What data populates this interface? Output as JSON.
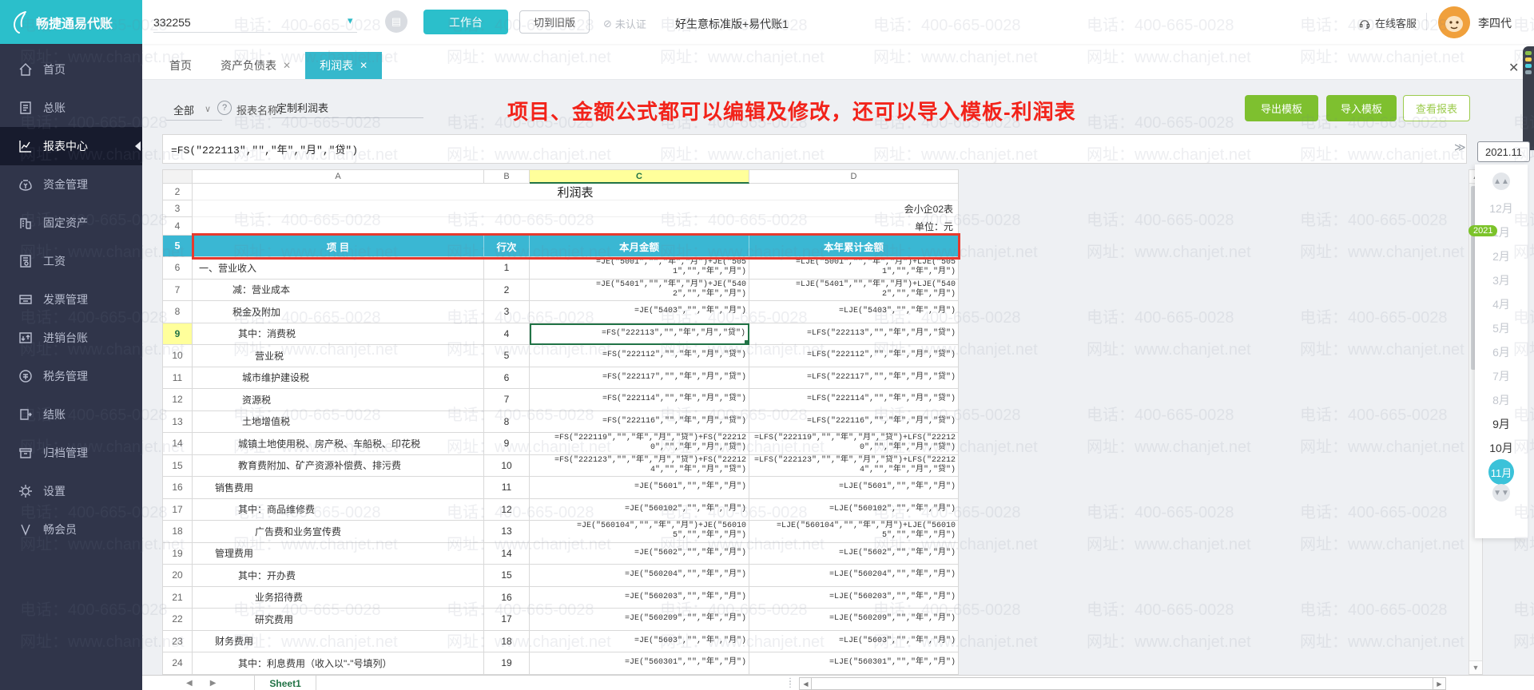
{
  "topbar": {
    "brand": "畅捷通易代账",
    "account_number": "332255",
    "workbench_button": "工作台",
    "switch_old_button": "切到旧版",
    "cert_status": "未认证",
    "edition": "好生意标准版+易代账1",
    "online_service": "在线客服",
    "username": "李四代"
  },
  "sidebar": {
    "items": [
      {
        "label": "首页",
        "icon": "home-icon",
        "active": false
      },
      {
        "label": "总账",
        "icon": "ledger-icon",
        "active": false
      },
      {
        "label": "报表中心",
        "icon": "report-center-icon",
        "active": true
      },
      {
        "label": "资金管理",
        "icon": "funds-icon",
        "active": false
      },
      {
        "label": "固定资产",
        "icon": "fixed-assets-icon",
        "active": false
      },
      {
        "label": "工资",
        "icon": "payroll-icon",
        "active": false
      },
      {
        "label": "发票管理",
        "icon": "invoice-icon",
        "active": false
      },
      {
        "label": "进销台账",
        "icon": "purchase-sales-icon",
        "active": false
      },
      {
        "label": "税务管理",
        "icon": "tax-icon",
        "active": false
      },
      {
        "label": "结账",
        "icon": "closing-icon",
        "active": false
      },
      {
        "label": "归档管理",
        "icon": "archive-icon",
        "active": false
      },
      {
        "label": "设置",
        "icon": "settings-icon",
        "active": false
      },
      {
        "label": "畅会员",
        "icon": "member-icon",
        "active": false
      }
    ]
  },
  "tabs": [
    {
      "label": "首页",
      "closable": false,
      "active": false
    },
    {
      "label": "资产负债表",
      "closable": true,
      "active": false
    },
    {
      "label": "利润表",
      "closable": true,
      "active": true
    }
  ],
  "toolbar": {
    "filter_all": "全部",
    "help_glyph": "?",
    "report_name_label": "报表名称：",
    "report_name_value": "定制利润表",
    "annotation": "项目、金额公式都可以编辑及修改，还可以导入模板-利润表",
    "export_template": "导出模板",
    "import_template": "导入模板",
    "view_report": "查看报表"
  },
  "formula_bar": {
    "value": "=FS(\"222113\",\"\",\"年\",\"月\",\"贷\")"
  },
  "period": {
    "current": "2021.11",
    "year_badge": "2021",
    "months": [
      {
        "label": "12月",
        "state": "muted"
      },
      {
        "label": "1月",
        "state": "muted"
      },
      {
        "label": "2月",
        "state": "muted"
      },
      {
        "label": "3月",
        "state": "muted"
      },
      {
        "label": "4月",
        "state": "muted"
      },
      {
        "label": "5月",
        "state": "muted"
      },
      {
        "label": "6月",
        "state": "muted"
      },
      {
        "label": "7月",
        "state": "muted"
      },
      {
        "label": "8月",
        "state": "muted"
      },
      {
        "label": "9月",
        "state": "normal"
      },
      {
        "label": "10月",
        "state": "normal"
      },
      {
        "label": "11月",
        "state": "selected"
      }
    ]
  },
  "spreadsheet": {
    "columns": [
      "A",
      "B",
      "C",
      "D"
    ],
    "highlighted_column": "C",
    "title_row": {
      "num": "2",
      "title": "利润表"
    },
    "meta_rows": [
      {
        "num": "3",
        "text": "会小企02表"
      },
      {
        "num": "4",
        "text": "单位：元"
      }
    ],
    "header_row": {
      "num": "5",
      "cells": [
        "项 目",
        "行次",
        "本月金额",
        "本年累计金额"
      ]
    },
    "selected_cell": {
      "row": 9,
      "column": "C"
    },
    "rows": [
      {
        "n": "6",
        "indent": 8,
        "item": "一、营业收入",
        "line": "1",
        "month": "=JE(\"5001\",\"\",\"年\",\"月\")+JE(\"5051\",\"\",\"年\",\"月\")",
        "year": "=LJE(\"5001\",\"\",\"年\",\"月\")+LJE(\"5051\",\"\",\"年\",\"月\")",
        "wrap": true
      },
      {
        "n": "7",
        "indent": 50,
        "item": "减：营业成本",
        "line": "2",
        "month": "=JE(\"5401\",\"\",\"年\",\"月\")+JE(\"5402\",\"\",\"年\",\"月\")",
        "year": "=LJE(\"5401\",\"\",\"年\",\"月\")+LJE(\"5402\",\"\",\"年\",\"月\")",
        "wrap": true
      },
      {
        "n": "8",
        "indent": 50,
        "item": "税金及附加",
        "line": "3",
        "month": "=JE(\"5403\",\"\",\"年\",\"月\")",
        "year": "=LJE(\"5403\",\"\",\"年\",\"月\")",
        "wrap": false
      },
      {
        "n": "9",
        "indent": 57,
        "item": "其中：消费税",
        "line": "4",
        "month": "=FS(\"222113\",\"\",\"年\",\"月\",\"贷\")",
        "year": "=LFS(\"222113\",\"\",\"年\",\"月\",\"贷\")",
        "wrap": false
      },
      {
        "n": "10",
        "indent": 78,
        "item": "营业税",
        "line": "5",
        "month": "=FS(\"222112\",\"\",\"年\",\"月\",\"贷\")",
        "year": "=LFS(\"222112\",\"\",\"年\",\"月\",\"贷\")",
        "wrap": false
      },
      {
        "n": "11",
        "indent": 62,
        "item": "城市维护建设税",
        "line": "6",
        "month": "=FS(\"222117\",\"\",\"年\",\"月\",\"贷\")",
        "year": "=LFS(\"222117\",\"\",\"年\",\"月\",\"贷\")",
        "wrap": false
      },
      {
        "n": "12",
        "indent": 62,
        "item": "资源税",
        "line": "7",
        "month": "=FS(\"222114\",\"\",\"年\",\"月\",\"贷\")",
        "year": "=LFS(\"222114\",\"\",\"年\",\"月\",\"贷\")",
        "wrap": false
      },
      {
        "n": "13",
        "indent": 62,
        "item": "土地增值税",
        "line": "8",
        "month": "=FS(\"222116\",\"\",\"年\",\"月\",\"贷\")",
        "year": "=LFS(\"222116\",\"\",\"年\",\"月\",\"贷\")",
        "wrap": false
      },
      {
        "n": "14",
        "indent": 57,
        "item": "城镇土地使用税、房产税、车船税、印花税",
        "line": "9",
        "month": "=FS(\"222119\",\"\",\"年\",\"月\",\"贷\")+FS(\"222120\",\"\",\"年\",\"月\",\"贷\")",
        "year": "=LFS(\"222119\",\"\",\"年\",\"月\",\"贷\")+LFS(\"222120\",\"\",\"年\",\"月\",\"贷\")",
        "wrap": true
      },
      {
        "n": "15",
        "indent": 57,
        "item": "教育费附加、矿产资源补偿费、排污费",
        "line": "10",
        "month": "=FS(\"222123\",\"\",\"年\",\"月\",\"贷\")+FS(\"222124\",\"\",\"年\",\"月\",\"贷\")",
        "year": "=LFS(\"222123\",\"\",\"年\",\"月\",\"贷\")+LFS(\"222124\",\"\",\"年\",\"月\",\"贷\")",
        "wrap": true
      },
      {
        "n": "16",
        "indent": 28,
        "item": "销售费用",
        "line": "11",
        "month": "=JE(\"5601\",\"\",\"年\",\"月\")",
        "year": "=LJE(\"5601\",\"\",\"年\",\"月\")",
        "wrap": false
      },
      {
        "n": "17",
        "indent": 57,
        "item": "其中：商品维修费",
        "line": "12",
        "month": "=JE(\"560102\",\"\",\"年\",\"月\")",
        "year": "=LJE(\"560102\",\"\",\"年\",\"月\")",
        "wrap": false
      },
      {
        "n": "18",
        "indent": 78,
        "item": "广告费和业务宣传费",
        "line": "13",
        "month": "=JE(\"560104\",\"\",\"年\",\"月\")+JE(\"560105\",\"\",\"年\",\"月\")",
        "year": "=LJE(\"560104\",\"\",\"年\",\"月\")+LJE(\"560105\",\"\",\"年\",\"月\")",
        "wrap": true
      },
      {
        "n": "19",
        "indent": 28,
        "item": "管理费用",
        "line": "14",
        "month": "=JE(\"5602\",\"\",\"年\",\"月\")",
        "year": "=LJE(\"5602\",\"\",\"年\",\"月\")",
        "wrap": false
      },
      {
        "n": "20",
        "indent": 57,
        "item": "其中：开办费",
        "line": "15",
        "month": "=JE(\"560204\",\"\",\"年\",\"月\")",
        "year": "=LJE(\"560204\",\"\",\"年\",\"月\")",
        "wrap": false
      },
      {
        "n": "21",
        "indent": 78,
        "item": "业务招待费",
        "line": "16",
        "month": "=JE(\"560203\",\"\",\"年\",\"月\")",
        "year": "=LJE(\"560203\",\"\",\"年\",\"月\")",
        "wrap": false
      },
      {
        "n": "22",
        "indent": 78,
        "item": "研究费用",
        "line": "17",
        "month": "=JE(\"560209\",\"\",\"年\",\"月\")",
        "year": "=LJE(\"560209\",\"\",\"年\",\"月\")",
        "wrap": false
      },
      {
        "n": "23",
        "indent": 28,
        "item": "财务费用",
        "line": "18",
        "month": "=JE(\"5603\",\"\",\"年\",\"月\")",
        "year": "=LJE(\"5603\",\"\",\"年\",\"月\")",
        "wrap": false
      },
      {
        "n": "24",
        "indent": 57,
        "item": "其中：利息费用（收入以\"-\"号填列）",
        "line": "19",
        "month": "=JE(\"560301\",\"\",\"年\",\"月\")",
        "year": "=LJE(\"560301\",\"\",\"年\",\"月\")",
        "wrap": false
      }
    ],
    "sheet_tab": "Sheet1"
  },
  "watermark": {
    "line1": "电话：400-665-0028",
    "line2": "网址：www.chanjet.net"
  },
  "colors": {
    "teal": "#2bbfcb",
    "tab_active": "#35b8cc",
    "table_header": "#3ab7d3",
    "green_button": "#7ec02f",
    "annotation_red": "#f2231a",
    "red_border": "#e73a2e",
    "highlight_yellow": "#ffff9b",
    "excel_green": "#217346",
    "year_badge_green": "#7cc32a",
    "sidebar_bg": "#30354a"
  }
}
